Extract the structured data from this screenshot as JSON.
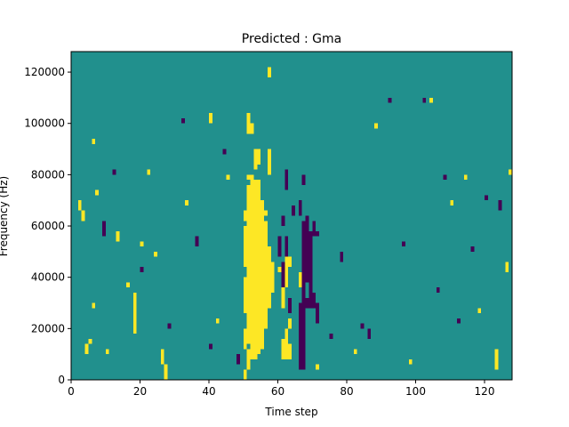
{
  "chart_data": {
    "type": "heatmap",
    "title": "Predicted : Gma",
    "xlabel": "Time step",
    "ylabel": "Frequency (Hz)",
    "xlim": [
      0,
      128
    ],
    "ylim": [
      0,
      128000
    ],
    "x_ticks": [
      0,
      20,
      40,
      60,
      80,
      100,
      120
    ],
    "y_ticks": [
      0,
      20000,
      40000,
      60000,
      80000,
      100000,
      120000
    ],
    "x_tick_labels": [
      "0",
      "20",
      "40",
      "60",
      "80",
      "100",
      "120"
    ],
    "y_tick_labels": [
      "0",
      "20000",
      "40000",
      "60000",
      "80000",
      "100000",
      "120000"
    ],
    "grid": false,
    "colors": {
      "background": "#21908d",
      "high": "#fde725",
      "low": "#440154"
    },
    "value_levels": {
      "background": 0,
      "high": 1,
      "low": -1
    },
    "cell_size": {
      "time_steps": 1,
      "frequency_hz": 2000
    },
    "cells": [
      {
        "v": 1,
        "t": [
          50,
          51
        ],
        "f": [
          0,
          4000
        ]
      },
      {
        "v": 1,
        "t": [
          50,
          51
        ],
        "f": [
          12000,
          20000
        ]
      },
      {
        "v": 1,
        "t": [
          50,
          51
        ],
        "f": [
          26000,
          40000
        ]
      },
      {
        "v": 1,
        "t": [
          50,
          51
        ],
        "f": [
          44000,
          60000
        ]
      },
      {
        "v": 1,
        "t": [
          50,
          51
        ],
        "f": [
          62000,
          66000
        ]
      },
      {
        "v": 1,
        "t": [
          51,
          52
        ],
        "f": [
          4000,
          12000
        ]
      },
      {
        "v": 1,
        "t": [
          51,
          52
        ],
        "f": [
          14000,
          76000
        ]
      },
      {
        "v": 1,
        "t": [
          51,
          52
        ],
        "f": [
          78000,
          80000
        ]
      },
      {
        "v": 1,
        "t": [
          51,
          52
        ],
        "f": [
          96000,
          104000
        ]
      },
      {
        "v": 1,
        "t": [
          52,
          53
        ],
        "f": [
          8000,
          80000
        ]
      },
      {
        "v": 1,
        "t": [
          52,
          53
        ],
        "f": [
          96000,
          100000
        ]
      },
      {
        "v": 1,
        "t": [
          53,
          54
        ],
        "f": [
          8000,
          78000
        ]
      },
      {
        "v": 1,
        "t": [
          53,
          54
        ],
        "f": [
          82000,
          90000
        ]
      },
      {
        "v": 1,
        "t": [
          54,
          55
        ],
        "f": [
          10000,
          78000
        ]
      },
      {
        "v": 1,
        "t": [
          54,
          55
        ],
        "f": [
          84000,
          90000
        ]
      },
      {
        "v": 1,
        "t": [
          55,
          56
        ],
        "f": [
          12000,
          70000
        ]
      },
      {
        "v": 1,
        "t": [
          56,
          57
        ],
        "f": [
          20000,
          62000
        ]
      },
      {
        "v": 1,
        "t": [
          56,
          57
        ],
        "f": [
          64000,
          66000
        ]
      },
      {
        "v": 1,
        "t": [
          57,
          58
        ],
        "f": [
          28000,
          52000
        ]
      },
      {
        "v": 1,
        "t": [
          57,
          58
        ],
        "f": [
          80000,
          90000
        ]
      },
      {
        "v": 1,
        "t": [
          58,
          59
        ],
        "f": [
          34000,
          46000
        ]
      },
      {
        "v": 1,
        "t": [
          60,
          61
        ],
        "f": [
          42000,
          44000
        ]
      },
      {
        "v": 1,
        "t": [
          61,
          62
        ],
        "f": [
          8000,
          16000
        ]
      },
      {
        "v": 1,
        "t": [
          61,
          62
        ],
        "f": [
          28000,
          36000
        ]
      },
      {
        "v": 1,
        "t": [
          62,
          63
        ],
        "f": [
          8000,
          20000
        ]
      },
      {
        "v": 1,
        "t": [
          62,
          63
        ],
        "f": [
          36000,
          48000
        ]
      },
      {
        "v": 1,
        "t": [
          63,
          64
        ],
        "f": [
          8000,
          14000
        ]
      },
      {
        "v": 1,
        "t": [
          63,
          64
        ],
        "f": [
          20000,
          24000
        ]
      },
      {
        "v": 1,
        "t": [
          63,
          64
        ],
        "f": [
          44000,
          48000
        ]
      },
      {
        "v": 1,
        "t": [
          66,
          67
        ],
        "f": [
          36000,
          42000
        ]
      },
      {
        "v": 1,
        "t": [
          67,
          68
        ],
        "f": [
          40000,
          46000
        ]
      },
      {
        "v": -1,
        "t": [
          60,
          61
        ],
        "f": [
          48000,
          56000
        ]
      },
      {
        "v": -1,
        "t": [
          61,
          62
        ],
        "f": [
          36000,
          46000
        ]
      },
      {
        "v": -1,
        "t": [
          61,
          62
        ],
        "f": [
          60000,
          64000
        ]
      },
      {
        "v": -1,
        "t": [
          62,
          63
        ],
        "f": [
          48000,
          56000
        ]
      },
      {
        "v": -1,
        "t": [
          62,
          63
        ],
        "f": [
          74000,
          82000
        ]
      },
      {
        "v": -1,
        "t": [
          63,
          64
        ],
        "f": [
          26000,
          32000
        ]
      },
      {
        "v": -1,
        "t": [
          64,
          65
        ],
        "f": [
          64000,
          68000
        ]
      },
      {
        "v": -1,
        "t": [
          66,
          67
        ],
        "f": [
          4000,
          30000
        ]
      },
      {
        "v": -1,
        "t": [
          66,
          67
        ],
        "f": [
          64000,
          70000
        ]
      },
      {
        "v": -1,
        "t": [
          67,
          68
        ],
        "f": [
          4000,
          62000
        ]
      },
      {
        "v": -1,
        "t": [
          67,
          68
        ],
        "f": [
          76000,
          80000
        ]
      },
      {
        "v": -1,
        "t": [
          68,
          69
        ],
        "f": [
          28000,
          32000
        ]
      },
      {
        "v": -1,
        "t": [
          68,
          69
        ],
        "f": [
          38000,
          64000
        ]
      },
      {
        "v": -1,
        "t": [
          69,
          70
        ],
        "f": [
          28000,
          58000
        ]
      },
      {
        "v": -1,
        "t": [
          70,
          71
        ],
        "f": [
          28000,
          34000
        ]
      },
      {
        "v": -1,
        "t": [
          70,
          71
        ],
        "f": [
          56000,
          62000
        ]
      },
      {
        "v": -1,
        "t": [
          71,
          72
        ],
        "f": [
          22000,
          30000
        ]
      },
      {
        "v": -1,
        "t": [
          71,
          72
        ],
        "f": [
          56000,
          58000
        ]
      },
      {
        "v": 1,
        "t": [
          71,
          72
        ],
        "f": [
          4000,
          6000
        ]
      },
      {
        "v": 1,
        "t": [
          2,
          3
        ],
        "f": [
          66000,
          70000
        ]
      },
      {
        "v": 1,
        "t": [
          3,
          4
        ],
        "f": [
          62000,
          66000
        ]
      },
      {
        "v": 1,
        "t": [
          4,
          5
        ],
        "f": [
          10000,
          14000
        ]
      },
      {
        "v": 1,
        "t": [
          5,
          6
        ],
        "f": [
          14000,
          16000
        ]
      },
      {
        "v": 1,
        "t": [
          6,
          7
        ],
        "f": [
          28000,
          30000
        ]
      },
      {
        "v": 1,
        "t": [
          6,
          7
        ],
        "f": [
          92000,
          94000
        ]
      },
      {
        "v": 1,
        "t": [
          7,
          8
        ],
        "f": [
          72000,
          74000
        ]
      },
      {
        "v": 1,
        "t": [
          10,
          11
        ],
        "f": [
          10000,
          12000
        ]
      },
      {
        "v": 1,
        "t": [
          13,
          14
        ],
        "f": [
          54000,
          58000
        ]
      },
      {
        "v": 1,
        "t": [
          16,
          17
        ],
        "f": [
          36000,
          38000
        ]
      },
      {
        "v": 1,
        "t": [
          18,
          19
        ],
        "f": [
          18000,
          34000
        ]
      },
      {
        "v": 1,
        "t": [
          20,
          21
        ],
        "f": [
          52000,
          54000
        ]
      },
      {
        "v": 1,
        "t": [
          22,
          23
        ],
        "f": [
          80000,
          82000
        ]
      },
      {
        "v": 1,
        "t": [
          24,
          25
        ],
        "f": [
          48000,
          50000
        ]
      },
      {
        "v": 1,
        "t": [
          26,
          27
        ],
        "f": [
          6000,
          12000
        ]
      },
      {
        "v": 1,
        "t": [
          27,
          28
        ],
        "f": [
          0,
          6000
        ]
      },
      {
        "v": 1,
        "t": [
          33,
          34
        ],
        "f": [
          68000,
          70000
        ]
      },
      {
        "v": 1,
        "t": [
          40,
          41
        ],
        "f": [
          100000,
          104000
        ]
      },
      {
        "v": 1,
        "t": [
          42,
          43
        ],
        "f": [
          22000,
          24000
        ]
      },
      {
        "v": 1,
        "t": [
          45,
          46
        ],
        "f": [
          78000,
          80000
        ]
      },
      {
        "v": 1,
        "t": [
          57,
          58
        ],
        "f": [
          118000,
          122000
        ]
      },
      {
        "v": 1,
        "t": [
          82,
          83
        ],
        "f": [
          10000,
          12000
        ]
      },
      {
        "v": 1,
        "t": [
          88,
          89
        ],
        "f": [
          98000,
          100000
        ]
      },
      {
        "v": 1,
        "t": [
          98,
          99
        ],
        "f": [
          6000,
          8000
        ]
      },
      {
        "v": 1,
        "t": [
          104,
          105
        ],
        "f": [
          108000,
          110000
        ]
      },
      {
        "v": 1,
        "t": [
          110,
          111
        ],
        "f": [
          68000,
          70000
        ]
      },
      {
        "v": 1,
        "t": [
          114,
          115
        ],
        "f": [
          78000,
          80000
        ]
      },
      {
        "v": 1,
        "t": [
          118,
          119
        ],
        "f": [
          26000,
          28000
        ]
      },
      {
        "v": 1,
        "t": [
          123,
          124
        ],
        "f": [
          4000,
          12000
        ]
      },
      {
        "v": 1,
        "t": [
          126,
          127
        ],
        "f": [
          42000,
          46000
        ]
      },
      {
        "v": 1,
        "t": [
          127,
          128
        ],
        "f": [
          80000,
          82000
        ]
      },
      {
        "v": -1,
        "t": [
          9,
          10
        ],
        "f": [
          56000,
          62000
        ]
      },
      {
        "v": -1,
        "t": [
          12,
          13
        ],
        "f": [
          80000,
          82000
        ]
      },
      {
        "v": -1,
        "t": [
          20,
          21
        ],
        "f": [
          42000,
          44000
        ]
      },
      {
        "v": -1,
        "t": [
          28,
          29
        ],
        "f": [
          20000,
          22000
        ]
      },
      {
        "v": -1,
        "t": [
          32,
          33
        ],
        "f": [
          100000,
          102000
        ]
      },
      {
        "v": -1,
        "t": [
          36,
          37
        ],
        "f": [
          52000,
          56000
        ]
      },
      {
        "v": -1,
        "t": [
          40,
          41
        ],
        "f": [
          12000,
          14000
        ]
      },
      {
        "v": -1,
        "t": [
          44,
          45
        ],
        "f": [
          88000,
          90000
        ]
      },
      {
        "v": -1,
        "t": [
          48,
          49
        ],
        "f": [
          6000,
          10000
        ]
      },
      {
        "v": -1,
        "t": [
          75,
          76
        ],
        "f": [
          16000,
          18000
        ]
      },
      {
        "v": -1,
        "t": [
          78,
          79
        ],
        "f": [
          46000,
          50000
        ]
      },
      {
        "v": -1,
        "t": [
          84,
          85
        ],
        "f": [
          20000,
          22000
        ]
      },
      {
        "v": -1,
        "t": [
          86,
          87
        ],
        "f": [
          16000,
          20000
        ]
      },
      {
        "v": -1,
        "t": [
          92,
          93
        ],
        "f": [
          108000,
          110000
        ]
      },
      {
        "v": -1,
        "t": [
          96,
          97
        ],
        "f": [
          52000,
          54000
        ]
      },
      {
        "v": -1,
        "t": [
          102,
          103
        ],
        "f": [
          108000,
          110000
        ]
      },
      {
        "v": -1,
        "t": [
          106,
          107
        ],
        "f": [
          34000,
          36000
        ]
      },
      {
        "v": -1,
        "t": [
          108,
          109
        ],
        "f": [
          78000,
          80000
        ]
      },
      {
        "v": -1,
        "t": [
          112,
          113
        ],
        "f": [
          22000,
          24000
        ]
      },
      {
        "v": -1,
        "t": [
          116,
          117
        ],
        "f": [
          50000,
          52000
        ]
      },
      {
        "v": -1,
        "t": [
          120,
          121
        ],
        "f": [
          70000,
          72000
        ]
      },
      {
        "v": -1,
        "t": [
          124,
          125
        ],
        "f": [
          66000,
          70000
        ]
      }
    ]
  }
}
